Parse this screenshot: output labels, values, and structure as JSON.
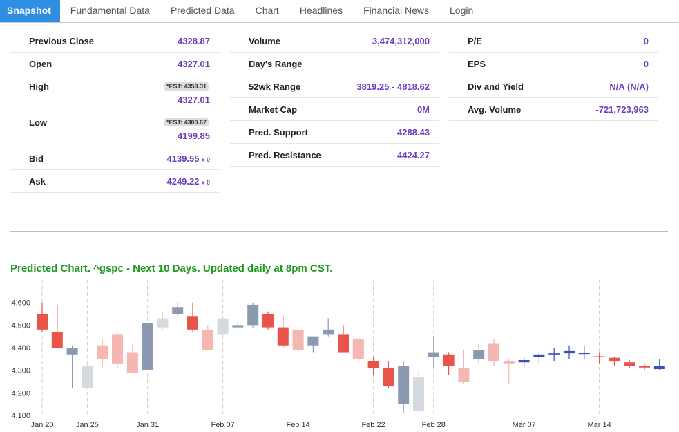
{
  "tabs": [
    "Snapshot",
    "Fundamental Data",
    "Predicted Data",
    "Chart",
    "Headlines",
    "Financial News",
    "Login"
  ],
  "snapshot": {
    "columns": [
      [
        {
          "label": "Previous Close",
          "value": "4328.87"
        },
        {
          "label": "Open",
          "value": "4327.01"
        },
        {
          "label": "High",
          "est": "*EST: 4359.31",
          "value": "4327.01"
        },
        {
          "label": "Low",
          "est": "*EST: 4300.67",
          "value": "4199.85"
        },
        {
          "label": "Bid",
          "value": "4139.55",
          "size": "x 0"
        },
        {
          "label": "Ask",
          "value": "4249.22",
          "size": "x 0"
        }
      ],
      [
        {
          "label": "Volume",
          "value": "3,474,312,000"
        },
        {
          "label": "Day's Range"
        },
        {
          "label": "52wk Range",
          "value": "3819.25 - 4818.62"
        },
        {
          "label": "Market Cap",
          "value": "0M"
        },
        {
          "label": "Pred. Support",
          "value": "4288.43"
        },
        {
          "label": "Pred. Resistance",
          "value": "4424.27"
        }
      ],
      [
        {
          "label": "P/E",
          "value": "0"
        },
        {
          "label": "EPS",
          "value": "0"
        },
        {
          "label": "Div and Yield",
          "value": "N/A (N/A)"
        },
        {
          "label": "Avg. Volume",
          "value": "-721,723,963"
        }
      ]
    ]
  },
  "chart_data": {
    "type": "candlestick",
    "title": "Predicted Chart. ^gspc - Next 10 Days. Updated daily at 8pm CST.",
    "categories": [
      "Jan 20",
      null,
      null,
      "Jan 25",
      null,
      null,
      null,
      "Jan 31",
      null,
      null,
      null,
      null,
      "Feb 07",
      null,
      null,
      null,
      null,
      "Feb 14",
      null,
      null,
      null,
      null,
      "Feb 22",
      null,
      null,
      null,
      "Feb 28",
      null,
      null,
      null,
      null,
      null,
      "Mar 07",
      null,
      null,
      null,
      null,
      "Mar 14",
      null,
      null,
      null,
      null
    ],
    "open": [
      4550,
      4470,
      4370,
      4220,
      4410,
      4460,
      4380,
      4300,
      4490,
      4550,
      4540,
      4480,
      4460,
      4490,
      4500,
      4550,
      4490,
      4480,
      4410,
      4460,
      4460,
      4440,
      4340,
      4310,
      4150,
      4120,
      4360,
      4370,
      4310,
      4350,
      4420,
      4340,
      4335,
      4360,
      4370,
      4375,
      4372,
      4362,
      4355,
      4335,
      4318,
      4305
    ],
    "high": [
      4600,
      4590,
      4410,
      4330,
      4440,
      4470,
      4420,
      4510,
      4560,
      4600,
      4600,
      4500,
      4540,
      4520,
      4600,
      4560,
      4540,
      4480,
      4450,
      4530,
      4500,
      4440,
      4360,
      4340,
      4340,
      4300,
      4450,
      4380,
      4390,
      4420,
      4440,
      4350,
      4360,
      4380,
      4400,
      4410,
      4410,
      4380,
      4360,
      4345,
      4330,
      4350
    ],
    "low": [
      4470,
      4400,
      4220,
      4215,
      4310,
      4310,
      4290,
      4300,
      4480,
      4540,
      4470,
      4390,
      4450,
      4480,
      4490,
      4480,
      4400,
      4380,
      4380,
      4450,
      4380,
      4330,
      4280,
      4220,
      4110,
      4120,
      4310,
      4280,
      4240,
      4330,
      4320,
      4240,
      4310,
      4330,
      4340,
      4350,
      4350,
      4330,
      4320,
      4310,
      4300,
      4300
    ],
    "close": [
      4480,
      4400,
      4400,
      4320,
      4350,
      4330,
      4290,
      4510,
      4530,
      4580,
      4480,
      4390,
      4530,
      4500,
      4590,
      4490,
      4410,
      4390,
      4450,
      4480,
      4380,
      4350,
      4310,
      4230,
      4320,
      4270,
      4380,
      4320,
      4250,
      4390,
      4340,
      4330,
      4345,
      4370,
      4375,
      4385,
      4378,
      4358,
      4340,
      4320,
      4312,
      4320
    ],
    "colors": [
      "#e8534a",
      "#e8534a",
      "#8c9ab1",
      "#d5d9e0",
      "#f4b7b2",
      "#f4b7b2",
      "#f4b7b2",
      "#8c9ab1",
      "#d5d9e0",
      "#8c9ab1",
      "#e8534a",
      "#f4b7b2",
      "#d5d9e0",
      "#8c9ab1",
      "#8c9ab1",
      "#e8534a",
      "#e8534a",
      "#f4b7b2",
      "#8c9ab1",
      "#8c9ab1",
      "#e8534a",
      "#f4b7b2",
      "#e8534a",
      "#e8534a",
      "#8c9ab1",
      "#d5d9e0",
      "#8c9ab1",
      "#e8534a",
      "#f4b7b2",
      "#8c9ab1",
      "#f4b7b2",
      "#f4b7b2",
      "#3b4cc0",
      "#3b4cc0",
      "#3b4cc0",
      "#3b4cc0",
      "#3b4cc0",
      "#e8534a",
      "#e8534a",
      "#e8534a",
      "#e8534a",
      "#3b4cc0"
    ],
    "ylim": [
      4100,
      4700
    ],
    "yticks": [
      {
        "value": 4100,
        "label": "4,100"
      },
      {
        "value": 4200,
        "label": "4,200"
      },
      {
        "value": 4300,
        "label": "4,300"
      },
      {
        "value": 4400,
        "label": "4,400"
      },
      {
        "value": 4500,
        "label": "4,500"
      },
      {
        "value": 4600,
        "label": "4,600"
      }
    ]
  }
}
